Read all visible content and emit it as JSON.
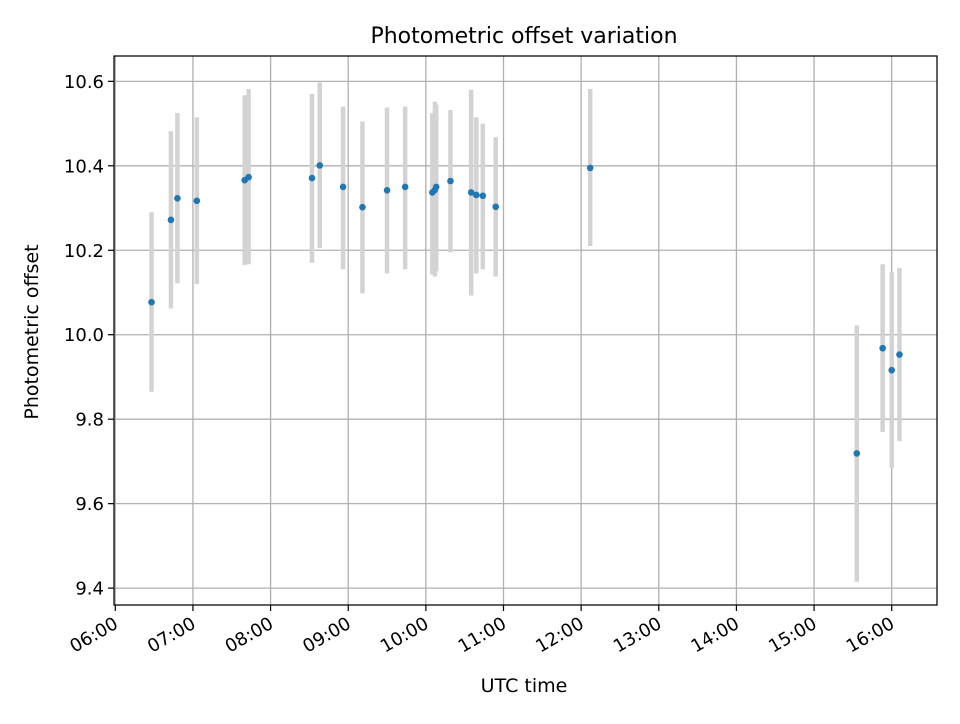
{
  "chart_data": {
    "type": "scatter",
    "title": "Photometric offset variation",
    "xlabel": "UTC time",
    "ylabel": "Photometric offset",
    "xlim": [
      "05:59",
      "16:35"
    ],
    "ylim": [
      9.36,
      10.66
    ],
    "x_ticks": [
      "06:00",
      "07:00",
      "08:00",
      "09:00",
      "10:00",
      "11:00",
      "12:00",
      "13:00",
      "14:00",
      "15:00",
      "16:00"
    ],
    "y_ticks": [
      9.4,
      9.6,
      9.8,
      10.0,
      10.2,
      10.4,
      10.6
    ],
    "y_tick_labels": [
      "9.4",
      "9.6",
      "9.8",
      "10.0",
      "10.2",
      "10.4",
      "10.6"
    ],
    "grid": true,
    "marker_color": "#1f77b4",
    "errorbar_color": "#d3d3d3",
    "series": [
      {
        "points": [
          {
            "x": "06:28",
            "y": 10.077,
            "ylow": 9.865,
            "yhigh": 10.29
          },
          {
            "x": "06:43",
            "y": 10.272,
            "ylow": 10.062,
            "yhigh": 10.482
          },
          {
            "x": "06:48",
            "y": 10.323,
            "ylow": 10.122,
            "yhigh": 10.525
          },
          {
            "x": "07:03",
            "y": 10.317,
            "ylow": 10.12,
            "yhigh": 10.515
          },
          {
            "x": "07:40",
            "y": 10.366,
            "ylow": 10.165,
            "yhigh": 10.567
          },
          {
            "x": "07:43",
            "y": 10.373,
            "ylow": 10.167,
            "yhigh": 10.582
          },
          {
            "x": "08:32",
            "y": 10.371,
            "ylow": 10.17,
            "yhigh": 10.57
          },
          {
            "x": "08:38",
            "y": 10.401,
            "ylow": 10.205,
            "yhigh": 10.597
          },
          {
            "x": "08:56",
            "y": 10.35,
            "ylow": 10.155,
            "yhigh": 10.54
          },
          {
            "x": "09:11",
            "y": 10.302,
            "ylow": 10.098,
            "yhigh": 10.505
          },
          {
            "x": "09:30",
            "y": 10.342,
            "ylow": 10.145,
            "yhigh": 10.538
          },
          {
            "x": "09:44",
            "y": 10.35,
            "ylow": 10.155,
            "yhigh": 10.54
          },
          {
            "x": "10:05",
            "y": 10.337,
            "ylow": 10.143,
            "yhigh": 10.525
          },
          {
            "x": "10:07",
            "y": 10.343,
            "ylow": 10.138,
            "yhigh": 10.552
          },
          {
            "x": "10:08",
            "y": 10.35,
            "ylow": 10.15,
            "yhigh": 10.545
          },
          {
            "x": "10:19",
            "y": 10.364,
            "ylow": 10.195,
            "yhigh": 10.532
          },
          {
            "x": "10:35",
            "y": 10.337,
            "ylow": 10.093,
            "yhigh": 10.58
          },
          {
            "x": "10:39",
            "y": 10.331,
            "ylow": 10.145,
            "yhigh": 10.515
          },
          {
            "x": "10:44",
            "y": 10.329,
            "ylow": 10.155,
            "yhigh": 10.5
          },
          {
            "x": "10:54",
            "y": 10.303,
            "ylow": 10.138,
            "yhigh": 10.468
          },
          {
            "x": "12:07",
            "y": 10.395,
            "ylow": 10.21,
            "yhigh": 10.582
          },
          {
            "x": "15:33",
            "y": 9.719,
            "ylow": 9.415,
            "yhigh": 10.022
          },
          {
            "x": "15:53",
            "y": 9.968,
            "ylow": 9.77,
            "yhigh": 10.167
          },
          {
            "x": "16:00",
            "y": 9.916,
            "ylow": 9.685,
            "yhigh": 10.148
          },
          {
            "x": "16:06",
            "y": 9.953,
            "ylow": 9.748,
            "yhigh": 10.158
          }
        ]
      }
    ]
  }
}
